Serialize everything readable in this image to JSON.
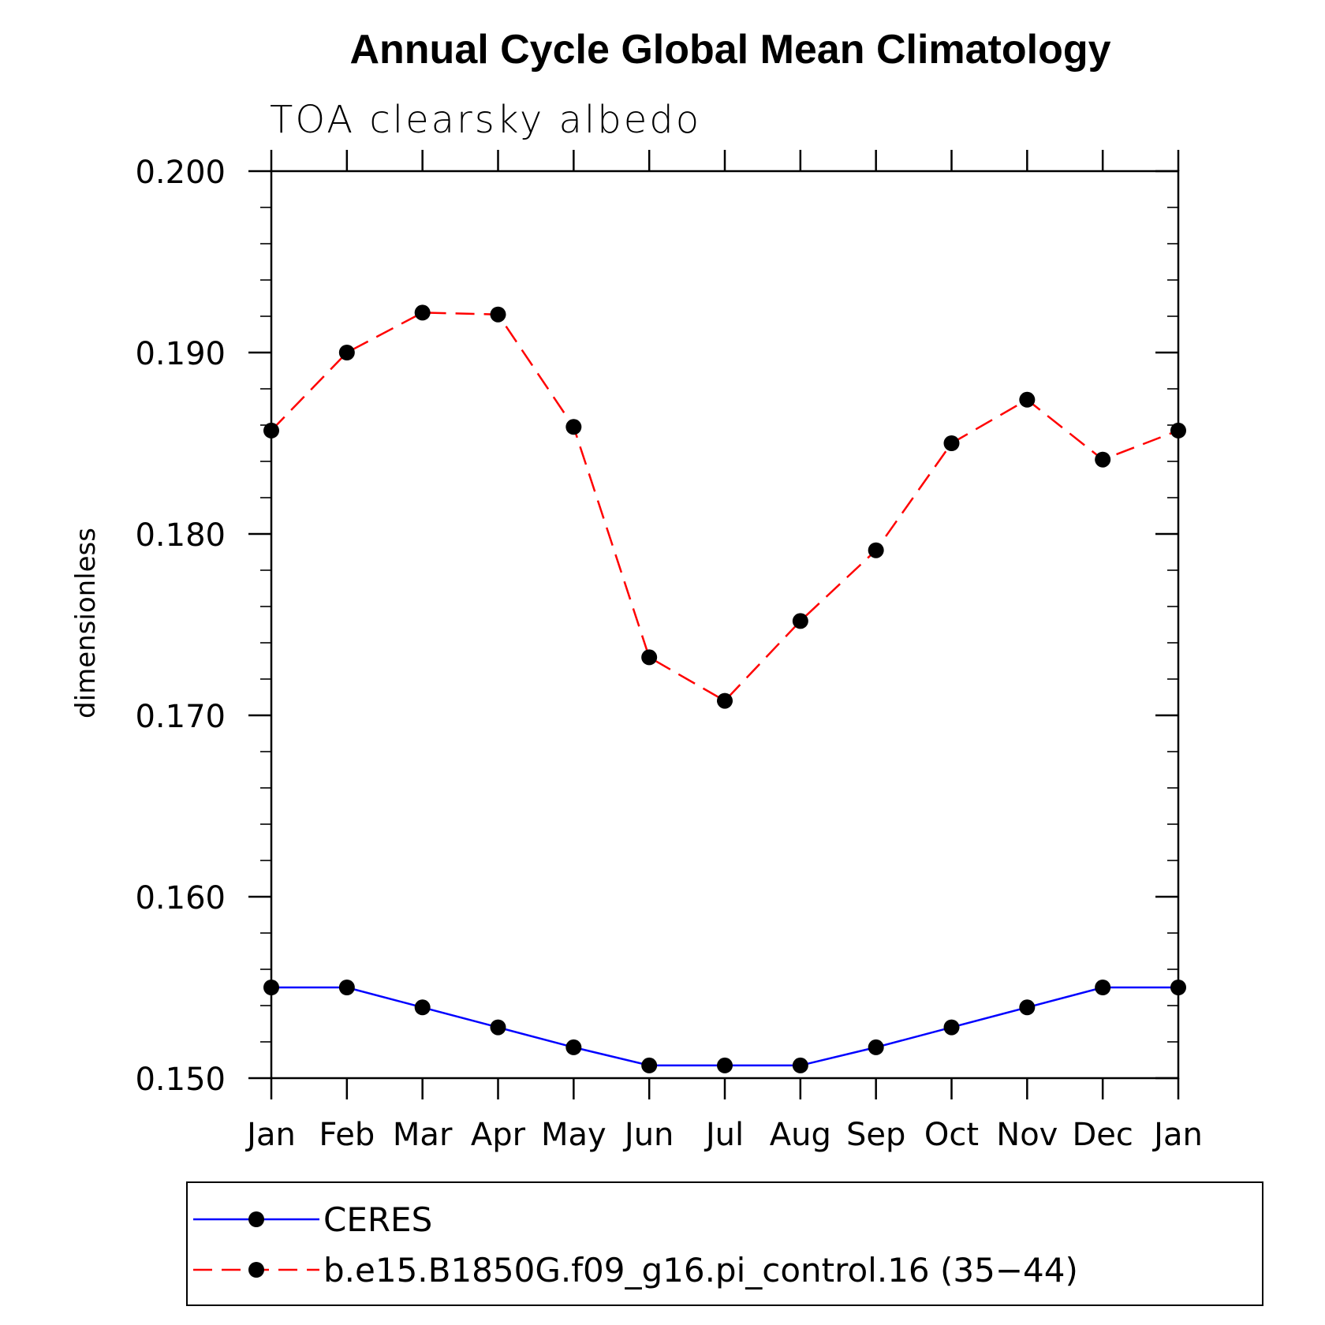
{
  "chart_data": {
    "type": "line",
    "title": "Annual Cycle Global Mean Climatology",
    "subtitle": "TOA clearsky albedo",
    "xlabel": "",
    "ylabel": "dimensionless",
    "categories": [
      "Jan",
      "Feb",
      "Mar",
      "Apr",
      "May",
      "Jun",
      "Jul",
      "Aug",
      "Sep",
      "Oct",
      "Nov",
      "Dec",
      "Jan"
    ],
    "ylim": [
      0.15,
      0.2
    ],
    "yticks": [
      0.15,
      0.16,
      0.17,
      0.18,
      0.19,
      0.2
    ],
    "ytick_labels": [
      "0.150",
      "0.160",
      "0.170",
      "0.180",
      "0.190",
      "0.200"
    ],
    "grid": false,
    "legend_position": "bottom",
    "series": [
      {
        "name": "CERES",
        "color": "#0000ff",
        "line_style": "solid",
        "marker": "filled-circle",
        "values": [
          0.155,
          0.155,
          0.1539,
          0.1528,
          0.1517,
          0.1507,
          0.1507,
          0.1507,
          0.1517,
          0.1528,
          0.1539,
          0.155,
          0.155
        ]
      },
      {
        "name": "b.e15.B1850G.f09_g16.pi_control.16 (35−44)",
        "color": "#ff0000",
        "line_style": "dashed",
        "marker": "filled-circle",
        "values": [
          0.1857,
          0.19,
          0.1922,
          0.1921,
          0.1859,
          0.1732,
          0.1708,
          0.1752,
          0.1791,
          0.185,
          0.1874,
          0.1841,
          0.1857
        ]
      }
    ]
  }
}
